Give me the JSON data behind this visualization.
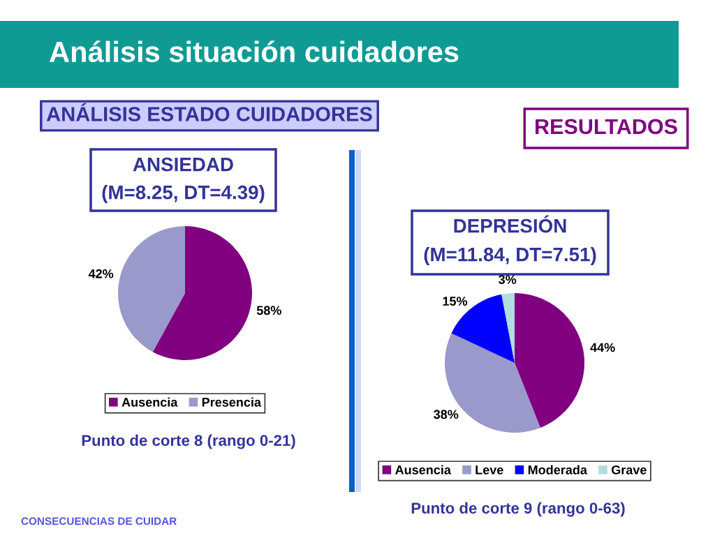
{
  "chart_data": [
    {
      "type": "other",
      "title": "Análisis situación cuidadores",
      "annotations": [
        "ANÁLISIS ESTADO CUIDADORES",
        "RESULTADOS",
        "CONSECUENCIAS DE CUIDAR"
      ]
    },
    {
      "type": "pie",
      "title": "ANSIEDAD",
      "subtitle": "(M=8.25, DT=4.39)",
      "categories": [
        "Ausencia",
        "Presencia"
      ],
      "values": [
        58,
        42
      ],
      "colors": [
        "#800080",
        "#9999cc"
      ],
      "value_labels": [
        "58%",
        "42%"
      ],
      "legend": "bottom",
      "annotations": [
        "Punto de corte 8 (rango 0-21)"
      ]
    },
    {
      "type": "pie",
      "title": "DEPRESIÓN",
      "subtitle": "(M=11.84, DT=7.51)",
      "categories": [
        "Ausencia",
        "Leve",
        "Moderada",
        "Grave"
      ],
      "values": [
        44,
        38,
        15,
        3
      ],
      "colors": [
        "#800080",
        "#9999cc",
        "#0000ff",
        "#b0dede"
      ],
      "value_labels": [
        "44%",
        "38%",
        "15%",
        "3%"
      ],
      "legend": "bottom",
      "annotations": [
        "Punto de corte 9 (rango 0-63)"
      ]
    }
  ]
}
